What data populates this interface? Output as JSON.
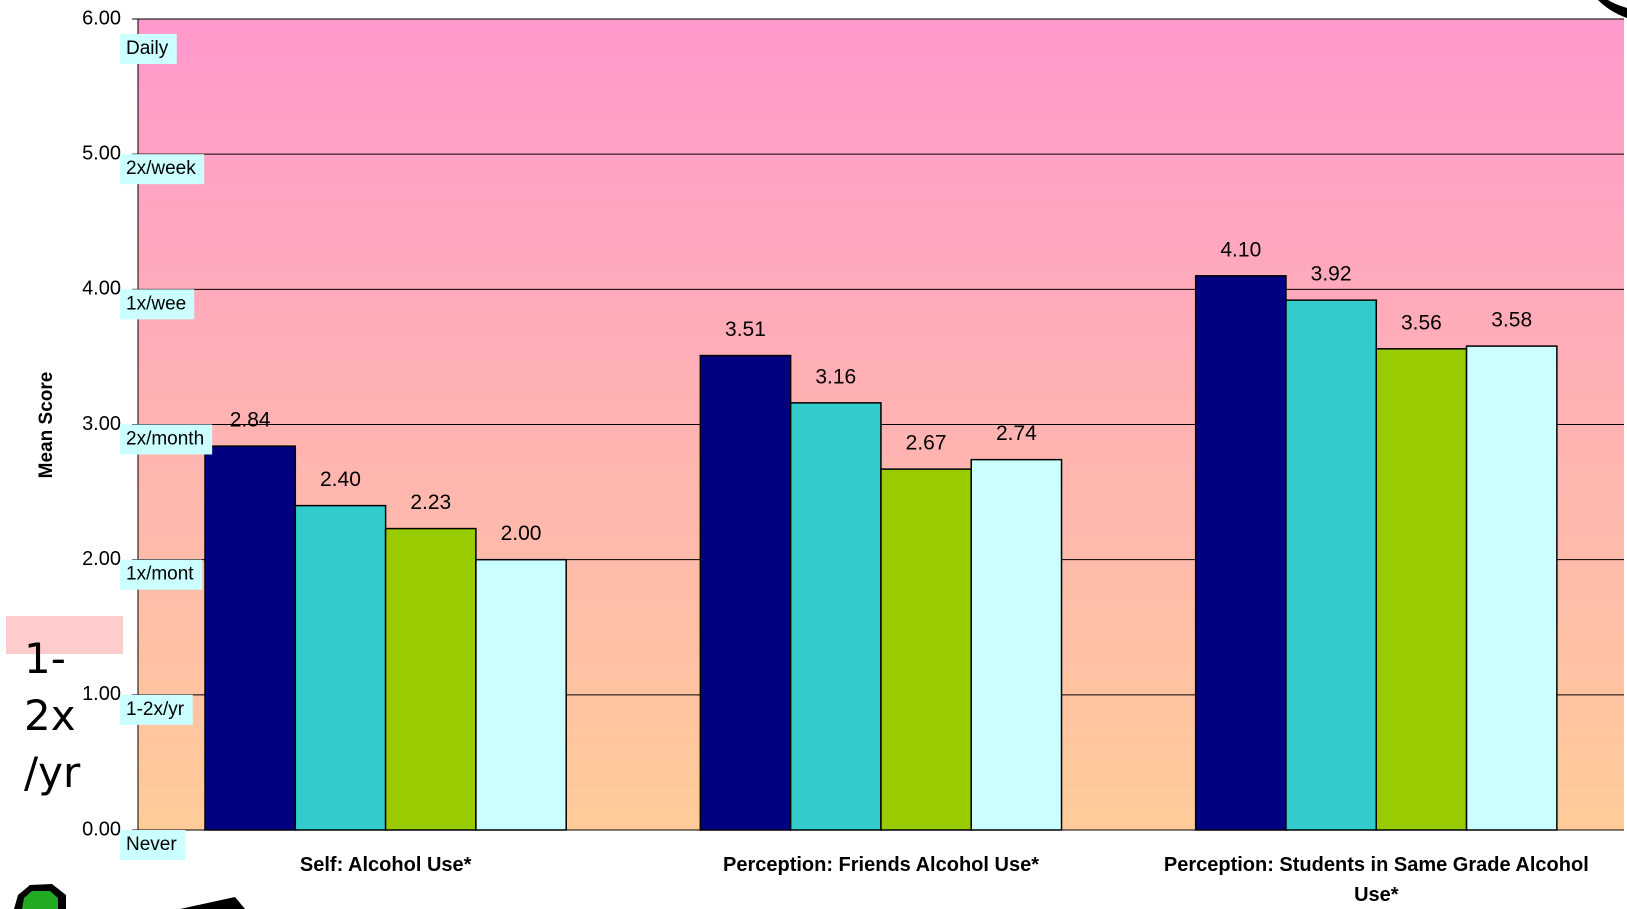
{
  "chart_data": {
    "type": "bar",
    "y_label": "Mean Score",
    "categories": [
      "Self: Alcohol Use*",
      "Perception: Friends Alcohol Use*",
      "Perception: Students in Same Grade Alcohol Use*"
    ],
    "series": [
      {
        "color": "#000080",
        "values": [
          2.84,
          3.51,
          4.1
        ],
        "value_labels": [
          "2.84",
          "3.51",
          "4.10"
        ]
      },
      {
        "color": "#33cccc",
        "values": [
          2.4,
          3.16,
          3.92
        ],
        "value_labels": [
          "2.40",
          "3.16",
          "3.92"
        ]
      },
      {
        "color": "#99cc00",
        "values": [
          2.23,
          2.67,
          3.56
        ],
        "value_labels": [
          "2.23",
          "2.67",
          "3.56"
        ]
      },
      {
        "color": "#ccffff",
        "values": [
          2.0,
          2.74,
          3.58
        ],
        "value_labels": [
          "2.00",
          "2.74",
          "3.58"
        ]
      }
    ],
    "ylim": [
      0,
      6
    ],
    "yticks": [
      {
        "value": 0,
        "label": "0.00"
      },
      {
        "value": 1,
        "label": "1.00"
      },
      {
        "value": 2,
        "label": "2.00"
      },
      {
        "value": 3,
        "label": "3.00"
      },
      {
        "value": 4,
        "label": "4.00"
      },
      {
        "value": 5,
        "label": "5.00"
      },
      {
        "value": 6,
        "label": "6.00"
      }
    ],
    "grid": true,
    "level_labels": [
      {
        "value": 6,
        "label": "Daily"
      },
      {
        "value": 5,
        "label": "2x/week"
      },
      {
        "value": 4,
        "label": "1x/wee"
      },
      {
        "value": 3,
        "label": "2x/month"
      },
      {
        "value": 2,
        "label": "1x/mont"
      },
      {
        "value": 1,
        "label": "1-2x/yr"
      },
      {
        "value": 0,
        "label": "Never"
      }
    ],
    "side_note": [
      "1-",
      "2x",
      "/yr"
    ]
  }
}
